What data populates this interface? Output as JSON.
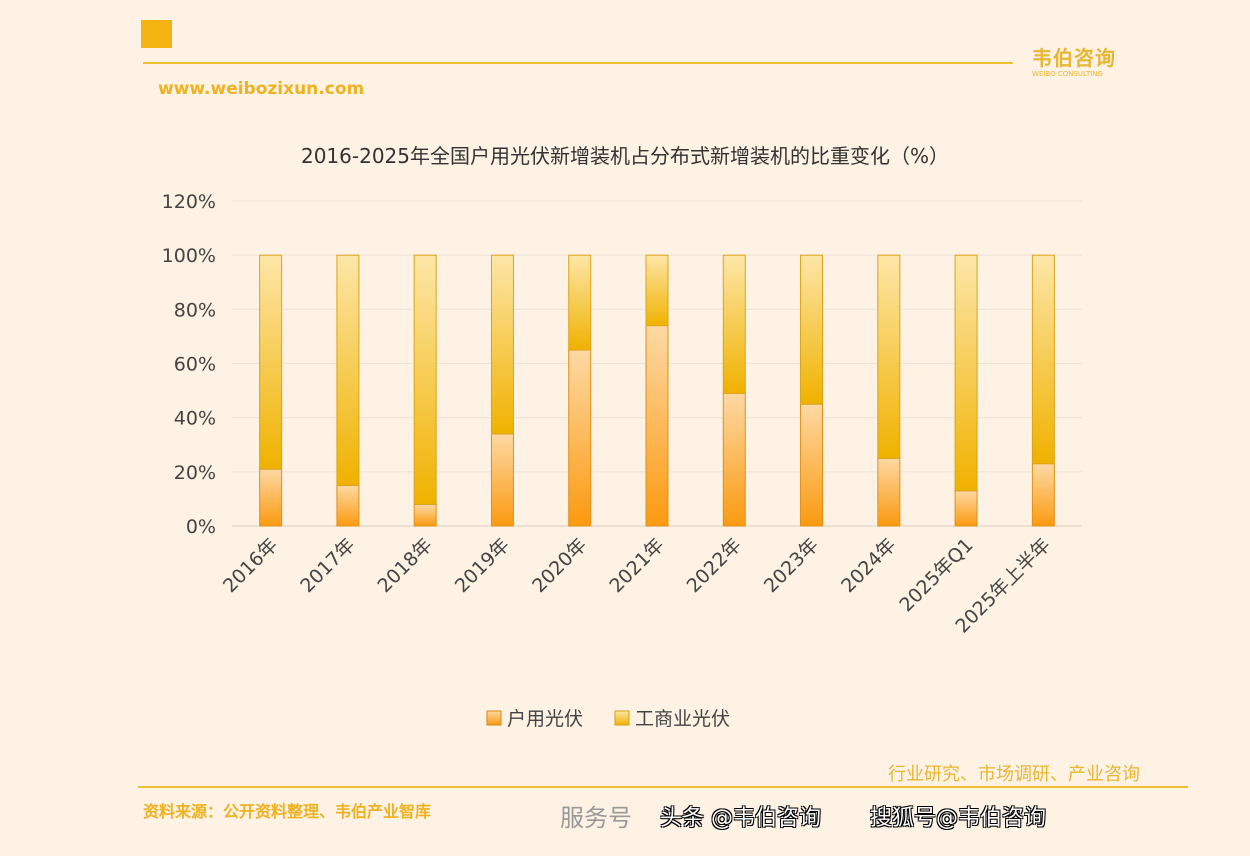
{
  "header": {
    "brand": "韦伯咨询",
    "brand_en": "WEIBO CONSULTING",
    "url": "www.weibozixun.com"
  },
  "footer": {
    "source": "资料来源：公开资料整理、韦伯产业智库",
    "tagline": "行业研究、市场调研、产业咨询",
    "watermark_service": "服务号",
    "watermark_toutiao": "头条 @韦伯咨询",
    "watermark_sohu": "搜狐号@韦伯咨询"
  },
  "colors": {
    "household": "#fb9d15",
    "commercial": "#f2b705",
    "background": "#fdf2e4"
  },
  "chart_data": {
    "type": "bar",
    "stacked": true,
    "title": "2016-2025年全国户用光伏新增装机占分布式新增装机的比重变化（%）",
    "categories": [
      "2016年",
      "2017年",
      "2018年",
      "2019年",
      "2020年",
      "2021年",
      "2022年",
      "2023年",
      "2024年",
      "2025年Q1",
      "2025年上半年"
    ],
    "series": [
      {
        "name": "户用光伏",
        "values": [
          21,
          15,
          8,
          34,
          65,
          74,
          49,
          45,
          25,
          13,
          23
        ]
      },
      {
        "name": "工商业光伏",
        "values": [
          79,
          85,
          92,
          66,
          35,
          26,
          51,
          55,
          75,
          87,
          77
        ]
      }
    ],
    "ylim": [
      0,
      120
    ],
    "yticks": [
      "0%",
      "20%",
      "40%",
      "60%",
      "80%",
      "100%",
      "120%"
    ],
    "grid": true,
    "legend": "bottom"
  }
}
